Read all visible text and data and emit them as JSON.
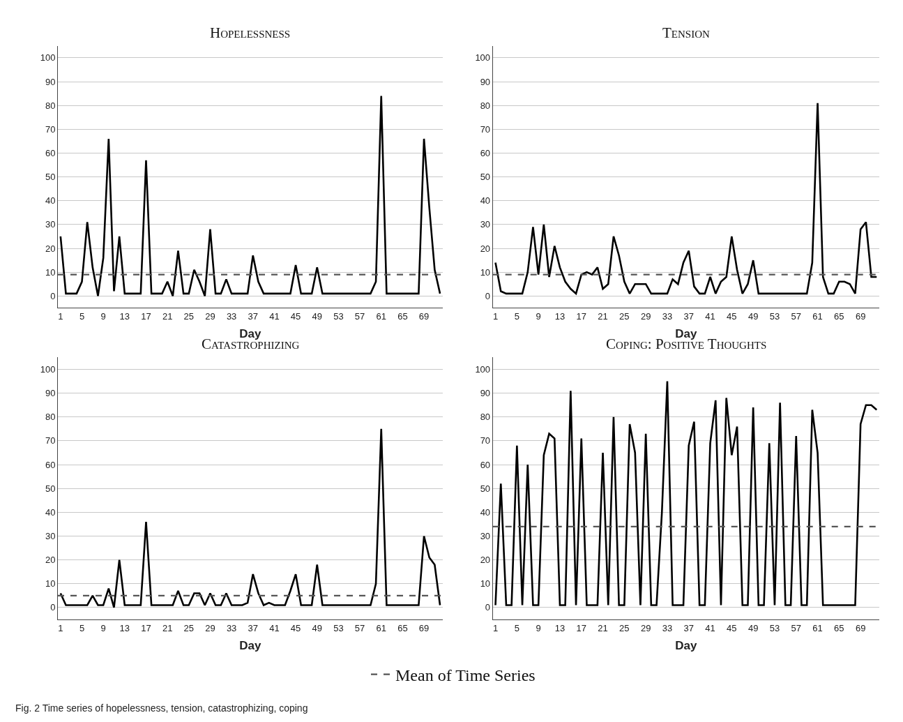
{
  "chart_data": [
    {
      "type": "line",
      "title": "Hopelessness",
      "xlabel": "Day",
      "color": "#000000",
      "grid": "y",
      "x": [
        1,
        2,
        3,
        4,
        5,
        6,
        7,
        8,
        9,
        10,
        11,
        12,
        13,
        14,
        15,
        16,
        17,
        18,
        19,
        20,
        21,
        22,
        23,
        24,
        25,
        26,
        27,
        28,
        29,
        30,
        31,
        32,
        33,
        34,
        35,
        36,
        37,
        38,
        39,
        40,
        41,
        42,
        43,
        44,
        45,
        46,
        47,
        48,
        49,
        50,
        51,
        52,
        53,
        54,
        55,
        56,
        57,
        58,
        59,
        60,
        61,
        62,
        63,
        64,
        65,
        66,
        67,
        68,
        69,
        70,
        71,
        72
      ],
      "values": [
        25,
        1,
        1,
        1,
        6,
        31,
        12,
        0,
        16,
        66,
        2,
        25,
        1,
        1,
        1,
        1,
        57,
        1,
        1,
        1,
        6,
        0,
        19,
        1,
        1,
        11,
        6,
        0,
        28,
        1,
        1,
        7,
        1,
        1,
        1,
        1,
        17,
        6,
        1,
        1,
        1,
        1,
        1,
        1,
        13,
        1,
        1,
        1,
        12,
        1,
        1,
        1,
        1,
        1,
        1,
        1,
        1,
        1,
        1,
        6,
        84,
        1,
        1,
        1,
        1,
        1,
        1,
        1,
        66,
        37,
        11,
        1
      ],
      "xlim": [
        0.5,
        72.5
      ],
      "ylim": [
        -5,
        105
      ],
      "xticks": [
        1,
        5,
        9,
        13,
        17,
        21,
        25,
        29,
        33,
        37,
        41,
        45,
        49,
        53,
        57,
        61,
        65,
        69
      ],
      "yticks": [
        0,
        10,
        20,
        30,
        40,
        50,
        60,
        70,
        80,
        90,
        100
      ],
      "ref_lines": [
        {
          "axis": "y",
          "value": 9,
          "color": "#555555",
          "line_style": "dashed"
        }
      ]
    },
    {
      "type": "line",
      "title": "Tension",
      "xlabel": "Day",
      "color": "#000000",
      "grid": "y",
      "x": [
        1,
        2,
        3,
        4,
        5,
        6,
        7,
        8,
        9,
        10,
        11,
        12,
        13,
        14,
        15,
        16,
        17,
        18,
        19,
        20,
        21,
        22,
        23,
        24,
        25,
        26,
        27,
        28,
        29,
        30,
        31,
        32,
        33,
        34,
        35,
        36,
        37,
        38,
        39,
        40,
        41,
        42,
        43,
        44,
        45,
        46,
        47,
        48,
        49,
        50,
        51,
        52,
        53,
        54,
        55,
        56,
        57,
        58,
        59,
        60,
        61,
        62,
        63,
        64,
        65,
        66,
        67,
        68,
        69,
        70,
        71,
        72
      ],
      "values": [
        14,
        2,
        1,
        1,
        1,
        1,
        10,
        29,
        9,
        30,
        8,
        21,
        12,
        6,
        3,
        1,
        9,
        10,
        9,
        12,
        3,
        5,
        25,
        17,
        6,
        1,
        5,
        5,
        5,
        1,
        1,
        1,
        1,
        7,
        5,
        14,
        19,
        4,
        1,
        1,
        8,
        1,
        6,
        8,
        25,
        11,
        1,
        5,
        15,
        1,
        1,
        1,
        1,
        1,
        1,
        1,
        1,
        1,
        1,
        14,
        81,
        8,
        1,
        1,
        6,
        6,
        5,
        1,
        28,
        31,
        8,
        8
      ],
      "xlim": [
        0.5,
        72.5
      ],
      "ylim": [
        -5,
        105
      ],
      "xticks": [
        1,
        5,
        9,
        13,
        17,
        21,
        25,
        29,
        33,
        37,
        41,
        45,
        49,
        53,
        57,
        61,
        65,
        69
      ],
      "yticks": [
        0,
        10,
        20,
        30,
        40,
        50,
        60,
        70,
        80,
        90,
        100
      ],
      "ref_lines": [
        {
          "axis": "y",
          "value": 9,
          "color": "#555555",
          "line_style": "dashed"
        }
      ]
    },
    {
      "type": "line",
      "title": "Catastrophizing",
      "xlabel": "Day",
      "color": "#000000",
      "grid": "y",
      "x": [
        1,
        2,
        3,
        4,
        5,
        6,
        7,
        8,
        9,
        10,
        11,
        12,
        13,
        14,
        15,
        16,
        17,
        18,
        19,
        20,
        21,
        22,
        23,
        24,
        25,
        26,
        27,
        28,
        29,
        30,
        31,
        32,
        33,
        34,
        35,
        36,
        37,
        38,
        39,
        40,
        41,
        42,
        43,
        44,
        45,
        46,
        47,
        48,
        49,
        50,
        51,
        52,
        53,
        54,
        55,
        56,
        57,
        58,
        59,
        60,
        61,
        62,
        63,
        64,
        65,
        66,
        67,
        68,
        69,
        70,
        71,
        72
      ],
      "values": [
        6,
        1,
        1,
        1,
        1,
        1,
        5,
        1,
        1,
        8,
        0,
        20,
        1,
        1,
        1,
        1,
        36,
        1,
        1,
        1,
        1,
        1,
        7,
        1,
        1,
        6,
        6,
        1,
        6,
        1,
        1,
        6,
        1,
        1,
        1,
        2,
        14,
        6,
        1,
        2,
        1,
        1,
        1,
        7,
        14,
        1,
        1,
        1,
        18,
        1,
        1,
        1,
        1,
        1,
        1,
        1,
        1,
        1,
        1,
        10,
        75,
        1,
        1,
        1,
        1,
        1,
        1,
        1,
        30,
        21,
        18,
        1
      ],
      "xlim": [
        0.5,
        72.5
      ],
      "ylim": [
        -5,
        105
      ],
      "xticks": [
        1,
        5,
        9,
        13,
        17,
        21,
        25,
        29,
        33,
        37,
        41,
        45,
        49,
        53,
        57,
        61,
        65,
        69
      ],
      "yticks": [
        0,
        10,
        20,
        30,
        40,
        50,
        60,
        70,
        80,
        90,
        100
      ],
      "ref_lines": [
        {
          "axis": "y",
          "value": 5,
          "color": "#555555",
          "line_style": "dashed"
        }
      ]
    },
    {
      "type": "line",
      "title": "Coping: Positive Thoughts",
      "xlabel": "Day",
      "color": "#000000",
      "grid": "y",
      "x": [
        1,
        2,
        3,
        4,
        5,
        6,
        7,
        8,
        9,
        10,
        11,
        12,
        13,
        14,
        15,
        16,
        17,
        18,
        19,
        20,
        21,
        22,
        23,
        24,
        25,
        26,
        27,
        28,
        29,
        30,
        31,
        32,
        33,
        34,
        35,
        36,
        37,
        38,
        39,
        40,
        41,
        42,
        43,
        44,
        45,
        46,
        47,
        48,
        49,
        50,
        51,
        52,
        53,
        54,
        55,
        56,
        57,
        58,
        59,
        60,
        61,
        62,
        63,
        64,
        65,
        66,
        67,
        68,
        69,
        70,
        71,
        72
      ],
      "values": [
        1,
        52,
        1,
        1,
        68,
        1,
        60,
        1,
        1,
        64,
        73,
        71,
        1,
        1,
        91,
        1,
        71,
        1,
        1,
        1,
        65,
        1,
        80,
        1,
        1,
        77,
        65,
        1,
        73,
        1,
        1,
        40,
        95,
        1,
        1,
        1,
        68,
        78,
        1,
        1,
        69,
        87,
        1,
        88,
        64,
        76,
        1,
        1,
        84,
        1,
        1,
        69,
        1,
        86,
        1,
        1,
        72,
        1,
        1,
        83,
        65,
        1,
        1,
        1,
        1,
        1,
        1,
        1,
        77,
        85,
        85,
        83
      ],
      "xlim": [
        0.5,
        72.5
      ],
      "ylim": [
        -5,
        105
      ],
      "xticks": [
        1,
        5,
        9,
        13,
        17,
        21,
        25,
        29,
        33,
        37,
        41,
        45,
        49,
        53,
        57,
        61,
        65,
        69
      ],
      "yticks": [
        0,
        10,
        20,
        30,
        40,
        50,
        60,
        70,
        80,
        90,
        100
      ],
      "ref_lines": [
        {
          "axis": "y",
          "value": 34,
          "color": "#555555",
          "line_style": "dashed",
          "label": "Mean of Time Series"
        }
      ],
      "legend": "bottom",
      "annotations": [
        "Fig. 2 Time series of hopelessness, tension, catastrophizing, coping"
      ]
    }
  ]
}
